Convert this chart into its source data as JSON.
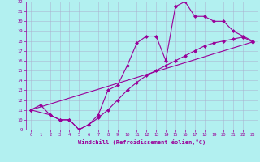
{
  "xlabel": "Windchill (Refroidissement éolien,°C)",
  "background_color": "#b2f0f0",
  "line_color": "#990099",
  "xlim": [
    -0.5,
    23.5
  ],
  "ylim": [
    9,
    22
  ],
  "xticks": [
    0,
    1,
    2,
    3,
    4,
    5,
    6,
    7,
    8,
    9,
    10,
    11,
    12,
    13,
    14,
    15,
    16,
    17,
    18,
    19,
    20,
    21,
    22,
    23
  ],
  "yticks": [
    9,
    10,
    11,
    12,
    13,
    14,
    15,
    16,
    17,
    18,
    19,
    20,
    21,
    22
  ],
  "line1_x": [
    0,
    1,
    2,
    3,
    4,
    5,
    6,
    7,
    8,
    9,
    10,
    11,
    12,
    13,
    14,
    15,
    16,
    17,
    18,
    19,
    20,
    21,
    22,
    23
  ],
  "line1_y": [
    11.0,
    11.5,
    10.5,
    10.0,
    10.0,
    9.0,
    9.5,
    10.5,
    13.0,
    13.5,
    15.5,
    17.8,
    18.5,
    18.5,
    16.0,
    21.5,
    22.0,
    20.5,
    20.5,
    20.0,
    20.0,
    19.0,
    18.5,
    18.0
  ],
  "line2_x": [
    0,
    2,
    3,
    4,
    5,
    6,
    7,
    8,
    9,
    10,
    11,
    12,
    13,
    14,
    15,
    16,
    17,
    18,
    19,
    20,
    21,
    22,
    23
  ],
  "line2_y": [
    11.0,
    10.5,
    10.0,
    10.0,
    9.0,
    9.5,
    10.2,
    11.0,
    12.0,
    13.0,
    13.8,
    14.5,
    15.0,
    15.5,
    16.0,
    16.5,
    17.0,
    17.5,
    17.8,
    18.0,
    18.2,
    18.4,
    17.9
  ],
  "line3_x": [
    0,
    23
  ],
  "line3_y": [
    11.0,
    17.9
  ],
  "grid_color": "#aaaacc",
  "marker": "D",
  "markersize": 2.5
}
